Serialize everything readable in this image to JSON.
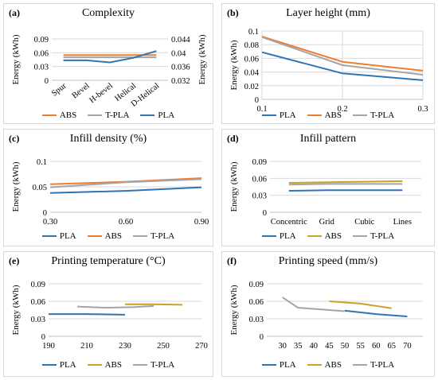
{
  "colors": {
    "PLA": "#2e75b6",
    "ABS": "#ed7d31",
    "T-PLA": "#a5a5a5",
    "ABS_gold": "#c9a227",
    "grid": "#d9d9d9",
    "axis": "#bfbfbf"
  },
  "chart_data": [
    {
      "panel": "(a)",
      "title": "Complexity",
      "type": "line",
      "ylabel": "Energy (kWh)",
      "ylabel2": "Energy (kWh)",
      "categories": [
        "Spur",
        "Bevel",
        "H-bevel",
        "Helical",
        "D-Helical"
      ],
      "ylim": [
        0,
        0.09
      ],
      "yticks": [
        0,
        0.03,
        0.06,
        0.09
      ],
      "ytick_labels": [
        "0",
        "0.03",
        "0.06",
        "0.09"
      ],
      "y2lim": [
        0.032,
        0.044
      ],
      "y2ticks": [
        0.032,
        0.036,
        0.04,
        0.044
      ],
      "y2tick_labels": [
        "0.032",
        "0.036",
        "0.04",
        "0.044"
      ],
      "grid": true,
      "legend": "bottom",
      "series": [
        {
          "name": "ABS",
          "axis": "left",
          "values": [
            0.055,
            0.055,
            0.055,
            0.055,
            0.055
          ]
        },
        {
          "name": "T-PLA",
          "axis": "left",
          "values": [
            0.05,
            0.05,
            0.05,
            0.05,
            0.05
          ]
        },
        {
          "name": "PLA",
          "axis": "right",
          "values": [
            0.0378,
            0.0378,
            0.0372,
            0.0385,
            0.0405
          ]
        }
      ]
    },
    {
      "panel": "(b)",
      "title": "Layer height (mm)",
      "type": "line",
      "ylabel": "Energy (kWh)",
      "x": [
        0.1,
        0.2,
        0.3
      ],
      "xlim": [
        0.1,
        0.3
      ],
      "xticks": [
        0.1,
        0.2,
        0.3
      ],
      "xtick_labels": [
        "0.1",
        "0.2",
        "0.3"
      ],
      "ylim": [
        0,
        0.1
      ],
      "yticks": [
        0,
        0.02,
        0.04,
        0.06,
        0.08,
        0.1
      ],
      "ytick_labels": [
        "0",
        "0.02",
        "0.04",
        "0.06",
        "0.08",
        "0.1"
      ],
      "grid": true,
      "legend": "bottom",
      "series": [
        {
          "name": "PLA",
          "x": [
            0.1,
            0.2,
            0.3
          ],
          "values": [
            0.069,
            0.038,
            0.028
          ]
        },
        {
          "name": "ABS",
          "x": [
            0.1,
            0.2,
            0.3
          ],
          "values": [
            0.092,
            0.055,
            0.042
          ]
        },
        {
          "name": "T-PLA",
          "x": [
            0.1,
            0.2,
            0.3
          ],
          "values": [
            0.091,
            0.05,
            0.036
          ]
        }
      ]
    },
    {
      "panel": "(c)",
      "title": "Infill density (%)",
      "type": "line",
      "ylabel": "Energy (kWh)",
      "xlim": [
        0.3,
        0.9
      ],
      "xticks": [
        0.3,
        0.6,
        0.9
      ],
      "xtick_labels": [
        "0.30",
        "0.60",
        "0.90"
      ],
      "ylim": [
        0,
        0.1
      ],
      "yticks": [
        0,
        0.05,
        0.1
      ],
      "ytick_labels": [
        "0",
        "0.05",
        "0.1"
      ],
      "grid": true,
      "legend": "bottom",
      "series": [
        {
          "name": "PLA",
          "x": [
            0.3,
            0.6,
            0.9
          ],
          "values": [
            0.038,
            0.042,
            0.049
          ]
        },
        {
          "name": "ABS",
          "x": [
            0.3,
            0.6,
            0.9
          ],
          "values": [
            0.055,
            0.06,
            0.067
          ]
        },
        {
          "name": "T-PLA",
          "x": [
            0.3,
            0.6,
            0.9
          ],
          "values": [
            0.049,
            0.059,
            0.065
          ]
        }
      ]
    },
    {
      "panel": "(d)",
      "title": "Infill pattern",
      "type": "line",
      "ylabel": "Energy (kWh)",
      "categories": [
        "Concentric",
        "Grid",
        "Cubic",
        "Lines"
      ],
      "ylim": [
        0,
        0.09
      ],
      "yticks": [
        0,
        0.03,
        0.06,
        0.09
      ],
      "ytick_labels": [
        "0",
        "0.03",
        "0.06",
        "0.09"
      ],
      "grid": true,
      "legend": "bottom",
      "series": [
        {
          "name": "PLA",
          "values": [
            0.038,
            0.039,
            0.039,
            0.039
          ]
        },
        {
          "name": "ABS",
          "values": [
            0.052,
            0.053,
            0.054,
            0.055
          ]
        },
        {
          "name": "T-PLA",
          "values": [
            0.049,
            0.05,
            0.05,
            0.05
          ]
        }
      ]
    },
    {
      "panel": "(e)",
      "title": "Printing temperature (°C)",
      "type": "line",
      "ylabel": "Energy (kWh)",
      "xlim": [
        190,
        270
      ],
      "xticks": [
        190,
        210,
        230,
        250,
        270
      ],
      "xtick_labels": [
        "190",
        "210",
        "230",
        "250",
        "270"
      ],
      "ylim": [
        0,
        0.09
      ],
      "yticks": [
        0,
        0.03,
        0.06,
        0.09
      ],
      "ytick_labels": [
        "0",
        "0.03",
        "0.06",
        "0.09"
      ],
      "grid": true,
      "legend": "bottom",
      "series": [
        {
          "name": "PLA",
          "x": [
            190,
            210,
            230
          ],
          "values": [
            0.038,
            0.038,
            0.037
          ]
        },
        {
          "name": "ABS",
          "x": [
            230,
            245,
            260
          ],
          "values": [
            0.055,
            0.055,
            0.054
          ]
        },
        {
          "name": "T-PLA",
          "x": [
            205,
            220,
            235,
            245
          ],
          "values": [
            0.051,
            0.049,
            0.05,
            0.052
          ]
        }
      ]
    },
    {
      "panel": "(f)",
      "title": "Printing speed (mm/s)",
      "type": "line",
      "ylabel": "Energy (kWh)",
      "xlim": [
        25,
        75
      ],
      "xticks": [
        30,
        35,
        40,
        45,
        50,
        55,
        60,
        65,
        70
      ],
      "xtick_labels": [
        "30",
        "35",
        "40",
        "45",
        "50",
        "55",
        "60",
        "65",
        "70"
      ],
      "ylim": [
        0,
        0.09
      ],
      "yticks": [
        0,
        0.03,
        0.06,
        0.09
      ],
      "ytick_labels": [
        "0",
        "0.03",
        "0.06",
        "0.09"
      ],
      "grid": true,
      "legend": "bottom",
      "series": [
        {
          "name": "PLA",
          "x": [
            50,
            60,
            70
          ],
          "values": [
            0.044,
            0.038,
            0.034
          ]
        },
        {
          "name": "ABS",
          "x": [
            45,
            55,
            65
          ],
          "values": [
            0.06,
            0.056,
            0.048
          ]
        },
        {
          "name": "T-PLA",
          "x": [
            30,
            35,
            40,
            50
          ],
          "values": [
            0.067,
            0.049,
            0.047,
            0.043
          ]
        }
      ]
    }
  ]
}
